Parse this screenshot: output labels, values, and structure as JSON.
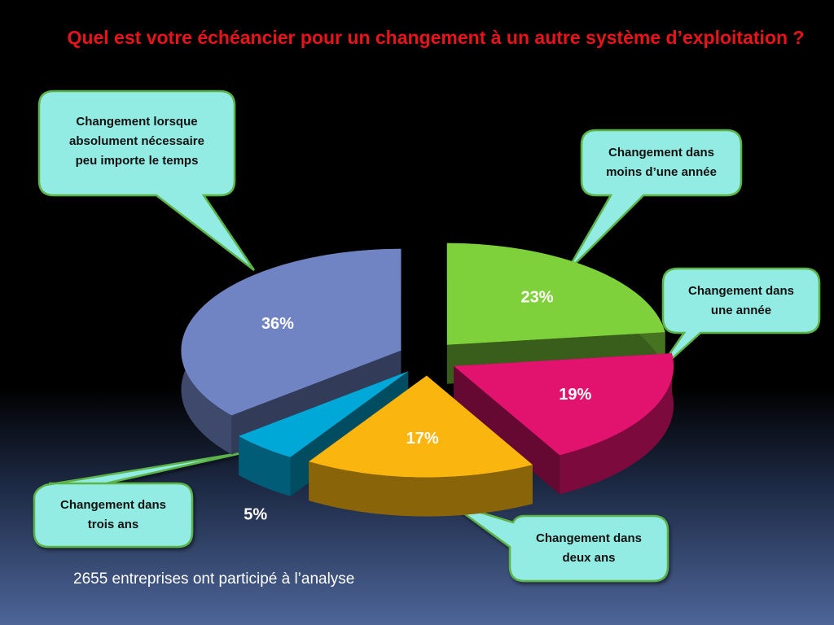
{
  "title": "Quel est votre échéancier pour un changement à un autre système d’exploitation ?",
  "footnote": "2655 entreprises ont participé à l’analyse",
  "chart_data": {
    "type": "pie",
    "title": "Quel est votre échéancier pour un changement à un autre système d’exploitation ?",
    "slices": [
      {
        "label": "Changement dans moins d’une année",
        "value": 23,
        "display": "23%",
        "color": "#7fd13b"
      },
      {
        "label": "Changement dans une année",
        "value": 19,
        "display": "19%",
        "color": "#e2136f"
      },
      {
        "label": "Changement dans deux ans",
        "value": 17,
        "display": "17%",
        "color": "#fbb50f"
      },
      {
        "label": "Changement dans trois ans",
        "value": 5,
        "display": "5%",
        "color": "#00a8d8"
      },
      {
        "label": "Changement lorsque absolument nécessaire peu importe le temps",
        "value": 36,
        "display": "36%",
        "color": "#7084c4"
      }
    ]
  },
  "callouts": {
    "necessaire": {
      "line1": "Changement lorsque",
      "line2": "absolument nécessaire",
      "line3": "peu importe le temps"
    },
    "moins_annee": {
      "line1": "Changement dans",
      "line2": "moins d’une année"
    },
    "une_annee": {
      "line1": "Changement dans",
      "line2": "une année"
    },
    "deux_ans": {
      "line1": "Changement dans",
      "line2": "deux ans"
    },
    "trois_ans": {
      "line1": "Changement dans",
      "line2": "trois ans"
    }
  },
  "colors": {
    "title": "#e8141b",
    "callout_fill": "#93ece3",
    "callout_border": "#5bb44a"
  }
}
